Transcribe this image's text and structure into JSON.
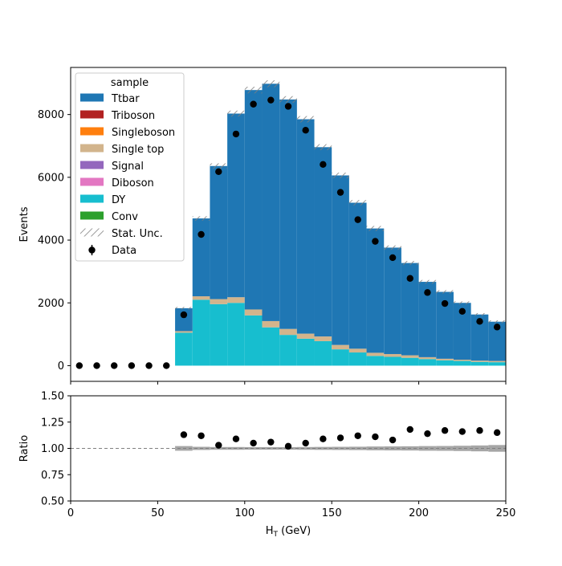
{
  "chart_data": [
    {
      "type": "stacked-histogram",
      "xlabel": "",
      "ylabel": "Events",
      "xlim": [
        0,
        250
      ],
      "ylim": [
        -500,
        9500
      ],
      "yticks": [
        0,
        2000,
        4000,
        6000,
        8000
      ],
      "xticks": [
        0,
        50,
        100,
        150,
        200,
        250
      ],
      "legend_title": "sample",
      "legend_location": "upper-left",
      "bin_edges": [
        0,
        10,
        20,
        30,
        40,
        50,
        60,
        70,
        80,
        90,
        100,
        110,
        120,
        130,
        140,
        150,
        160,
        170,
        180,
        190,
        200,
        210,
        220,
        230,
        240,
        250
      ],
      "series": [
        {
          "name": "DY",
          "color": "#17becf",
          "values": [
            0,
            0,
            0,
            0,
            0,
            0,
            1050,
            2100,
            1960,
            2000,
            1600,
            1220,
            980,
            860,
            780,
            520,
            420,
            310,
            280,
            250,
            210,
            170,
            150,
            120,
            110
          ]
        },
        {
          "name": "Conv",
          "color": "#2ca02c",
          "values": [
            0,
            0,
            0,
            0,
            0,
            0,
            0,
            0,
            0,
            0,
            0,
            0,
            0,
            0,
            0,
            0,
            0,
            0,
            0,
            0,
            0,
            0,
            0,
            0,
            0
          ]
        },
        {
          "name": "Diboson",
          "color": "#e377c2",
          "values": [
            0,
            0,
            0,
            0,
            0,
            0,
            0,
            0,
            0,
            0,
            0,
            0,
            0,
            0,
            0,
            0,
            0,
            0,
            0,
            0,
            0,
            0,
            0,
            0,
            0
          ]
        },
        {
          "name": "Signal",
          "color": "#9467bd",
          "values": [
            0,
            0,
            0,
            0,
            0,
            0,
            0,
            0,
            0,
            0,
            0,
            0,
            0,
            0,
            0,
            0,
            0,
            0,
            0,
            0,
            0,
            0,
            0,
            0,
            0
          ]
        },
        {
          "name": "Single top",
          "color": "#d2b48c",
          "values": [
            0,
            0,
            0,
            0,
            0,
            0,
            50,
            110,
            160,
            180,
            190,
            200,
            190,
            160,
            150,
            140,
            120,
            100,
            90,
            80,
            60,
            50,
            40,
            40,
            40
          ]
        },
        {
          "name": "Singleboson",
          "color": "#ff7f0e",
          "values": [
            0,
            0,
            0,
            0,
            0,
            0,
            0,
            0,
            0,
            0,
            0,
            0,
            0,
            0,
            0,
            0,
            0,
            0,
            0,
            0,
            0,
            0,
            0,
            0,
            0
          ]
        },
        {
          "name": "Triboson",
          "color": "#b22222",
          "values": [
            0,
            0,
            0,
            0,
            0,
            0,
            0,
            0,
            0,
            0,
            0,
            0,
            0,
            0,
            0,
            0,
            0,
            0,
            0,
            0,
            0,
            0,
            0,
            0,
            0
          ]
        },
        {
          "name": "Ttbar",
          "color": "#1f77b4",
          "values": [
            0,
            0,
            0,
            0,
            0,
            0,
            730,
            2480,
            4240,
            5850,
            6990,
            7560,
            7310,
            6830,
            6030,
            5400,
            4650,
            3960,
            3390,
            2940,
            2400,
            2130,
            1810,
            1470,
            1250
          ]
        }
      ],
      "stat_unc": {
        "name": "Stat. Unc.",
        "values": [
          0,
          0,
          0,
          0,
          0,
          0,
          40,
          70,
          85,
          95,
          105,
          110,
          105,
          100,
          95,
          90,
          85,
          80,
          70,
          65,
          60,
          55,
          50,
          45,
          45
        ]
      },
      "data": {
        "name": "Data",
        "color": "#000000",
        "x": [
          5,
          15,
          25,
          35,
          45,
          55,
          65,
          75,
          85,
          95,
          105,
          115,
          125,
          135,
          145,
          155,
          165,
          175,
          185,
          195,
          205,
          215,
          225,
          235,
          245
        ],
        "values": [
          0,
          0,
          0,
          0,
          0,
          0,
          1620,
          4180,
          6180,
          7380,
          8330,
          8460,
          8260,
          7500,
          6410,
          5520,
          4650,
          3960,
          3440,
          2780,
          2330,
          1980,
          1730,
          1410,
          1230
        ]
      }
    },
    {
      "type": "scatter",
      "xlabel": "H_T (GeV)",
      "xlabel_main": "H",
      "xlabel_sub": "T",
      "xlabel_unit": " (GeV)",
      "ylabel": "Ratio",
      "xlim": [
        0,
        250
      ],
      "ylim": [
        0.5,
        1.5
      ],
      "yticks": [
        "0.50",
        "0.75",
        "1.00",
        "1.25",
        "1.50"
      ],
      "ytick_values": [
        0.5,
        0.75,
        1.0,
        1.25,
        1.5
      ],
      "xticks": [
        "0",
        "50",
        "100",
        "150",
        "200",
        "250"
      ],
      "xtick_values": [
        0,
        50,
        100,
        150,
        200,
        250
      ],
      "reference_line": 1.0,
      "x": [
        65,
        75,
        85,
        95,
        105,
        115,
        125,
        135,
        145,
        155,
        165,
        175,
        185,
        195,
        205,
        215,
        225,
        235,
        245
      ],
      "values": [
        1.13,
        1.12,
        1.03,
        1.09,
        1.05,
        1.06,
        1.02,
        1.05,
        1.09,
        1.1,
        1.12,
        1.11,
        1.08,
        1.18,
        1.14,
        1.17,
        1.16,
        1.17,
        1.15
      ],
      "unc_band": [
        0.022,
        0.015,
        0.013,
        0.013,
        0.012,
        0.012,
        0.012,
        0.013,
        0.014,
        0.015,
        0.016,
        0.018,
        0.019,
        0.02,
        0.022,
        0.023,
        0.025,
        0.028,
        0.032
      ]
    }
  ]
}
